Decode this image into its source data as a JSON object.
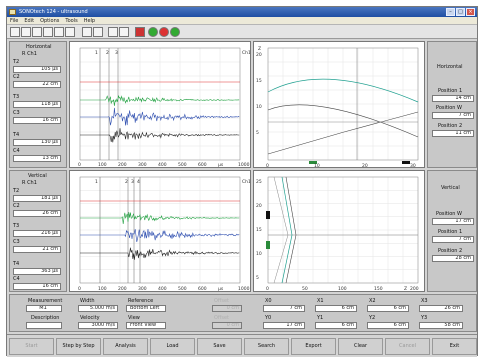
{
  "window": {
    "title": "SONOtech 124 - ultrasound"
  },
  "menu": [
    "File",
    "Edit",
    "Options",
    "Tools",
    "Help"
  ],
  "horizontal": {
    "title": "Horizontal",
    "unit_row": "R  Ch1",
    "fields": [
      {
        "label": "T2",
        "value": "105 µs"
      },
      {
        "label": "C2",
        "value": "22 cm"
      },
      {
        "label": "T3",
        "value": "118 µs"
      },
      {
        "label": "C3",
        "value": "16 cm"
      },
      {
        "label": "T4",
        "value": "130 µs"
      },
      {
        "label": "C4",
        "value": "13 cm"
      }
    ],
    "time_axis": [
      "0",
      "100",
      "200",
      "300",
      "400",
      "500",
      "600",
      "µs",
      "1000"
    ],
    "cursor_labels": [
      "1",
      "2",
      "3"
    ],
    "side_text": "Ch1 C1 Ch2",
    "pos_title": "Horizontal",
    "positions": [
      {
        "label": "Position 1",
        "value": "14 cm"
      },
      {
        "label": "Position W",
        "value": "7 cm"
      },
      {
        "label": "Position 2",
        "value": "11 cm"
      }
    ],
    "curve_y": [
      "20",
      "15",
      "10",
      "5"
    ],
    "curve_x": [
      "0",
      "10",
      "20",
      "30"
    ],
    "curve_ylabel": "Z"
  },
  "vertical": {
    "title": "Vertical",
    "unit_row": "R  Ch1",
    "fields": [
      {
        "label": "T2",
        "value": "181 µs"
      },
      {
        "label": "C2",
        "value": "26 cm"
      },
      {
        "label": "T3",
        "value": "216 µs"
      },
      {
        "label": "C3",
        "value": "21 cm"
      },
      {
        "label": "T4",
        "value": "363 µs"
      },
      {
        "label": "C4",
        "value": "16 cm"
      }
    ],
    "time_axis": [
      "0",
      "100",
      "200",
      "300",
      "400",
      "500",
      "600",
      "µs",
      "1000"
    ],
    "cursor_labels": [
      "1",
      "2",
      "3",
      "4"
    ],
    "side_text": "Ch1 C1 Ch2",
    "pos_title": "Vertical",
    "positions": [
      {
        "label": "Position W",
        "value": "17 cm"
      },
      {
        "label": "Position 1",
        "value": "7 cm"
      },
      {
        "label": "Position 2",
        "value": "28 cm"
      }
    ],
    "curve_y": [
      "25",
      "20",
      "15",
      "10",
      "5"
    ],
    "curve_x": [
      "0",
      "50",
      "100",
      "150",
      "200"
    ],
    "curve_xlabel": "Z"
  },
  "settings": {
    "measurement": {
      "label": "Measurement",
      "value": "M1"
    },
    "description": {
      "label": "Description",
      "value": ""
    },
    "width": {
      "label": "Width",
      "value": "5.000 m/s"
    },
    "velocity": {
      "label": "Velocity",
      "value": "3000 m/s"
    },
    "reference": {
      "label": "Reference",
      "value": "Bottom Left"
    },
    "view": {
      "label": "View",
      "value": "Front View"
    },
    "disabled1": {
      "label": "Offset",
      "value": "0 cm"
    },
    "disabled2": {
      "label": "Offset",
      "value": "0 cm"
    },
    "grid": [
      {
        "label": "X0",
        "value": "7 cm"
      },
      {
        "label": "X1",
        "value": "6 cm"
      },
      {
        "label": "X2",
        "value": "6 cm"
      },
      {
        "label": "X3",
        "value": "26 cm"
      },
      {
        "label": "Y0",
        "value": "17 cm"
      },
      {
        "label": "Y1",
        "value": "6 cm"
      },
      {
        "label": "Y2",
        "value": "6 cm"
      },
      {
        "label": "Y3",
        "value": "58 cm"
      }
    ]
  },
  "buttons": [
    {
      "label": "Start",
      "enabled": false
    },
    {
      "label": "Step by Step",
      "enabled": true
    },
    {
      "label": "Analysis",
      "enabled": true
    },
    {
      "label": "Load",
      "enabled": true
    },
    {
      "label": "Save",
      "enabled": true
    },
    {
      "label": "Search",
      "enabled": true
    },
    {
      "label": "Export",
      "enabled": true
    },
    {
      "label": "Clear",
      "enabled": true
    },
    {
      "label": "Cancel",
      "enabled": false
    },
    {
      "label": "Exit",
      "enabled": true
    }
  ],
  "colors": {
    "trace_red": "#e03030",
    "trace_green": "#20a040",
    "trace_blue": "#3050b0",
    "trace_black": "#222222",
    "curve_teal": "#20a090"
  }
}
